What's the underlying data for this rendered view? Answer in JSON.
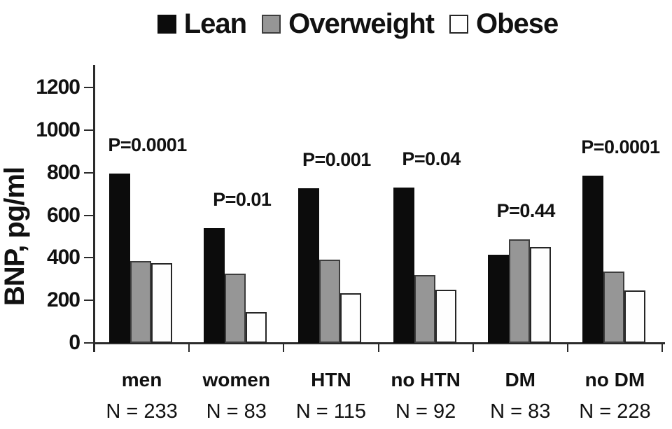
{
  "chart_data": {
    "type": "bar",
    "title": "",
    "xlabel": "",
    "ylabel": "BNP, pg/ml",
    "ylim": [
      0,
      1300
    ],
    "yticks": [
      0,
      200,
      400,
      600,
      800,
      1000,
      1200
    ],
    "grid": false,
    "legend_position": "top",
    "categories": [
      "men",
      "women",
      "HTN",
      "no HTN",
      "DM",
      "no DM"
    ],
    "category_n_labels": [
      "N = 233",
      "N = 83",
      "N = 115",
      "N = 92",
      "N = 83",
      "N = 228"
    ],
    "p_value_labels": [
      "P=0.0001",
      "P=0.01",
      "P=0.001",
      "P=0.04",
      "P=0.44",
      "P=0.0001"
    ],
    "series": [
      {
        "name": "Lean",
        "color": "#0c0c0c",
        "border_color": "#0c0c0c",
        "values": [
          795,
          540,
          725,
          730,
          415,
          785
        ]
      },
      {
        "name": "Overweight",
        "color": "#969696",
        "border_color": "#3d3d3d",
        "values": [
          385,
          325,
          390,
          320,
          485,
          335
        ]
      },
      {
        "name": "Obese",
        "color": "#fefefe",
        "border_color": "#262626",
        "values": [
          375,
          145,
          235,
          250,
          450,
          245
        ]
      }
    ]
  },
  "colors": {
    "ink": "#111111",
    "axis": "#2b2b2b",
    "background": "#ffffff"
  }
}
